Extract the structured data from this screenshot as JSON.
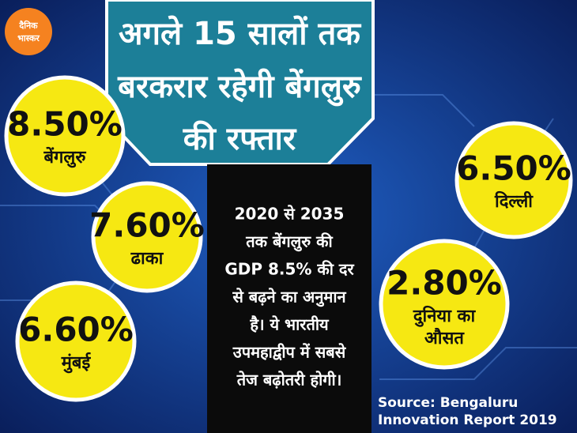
{
  "logo": {
    "line1": "दैनिक",
    "line2": "भास्कर"
  },
  "title": [
    "अगले 15 सालों तक",
    "बरकरार रहेगी बेंगलुरु",
    "की रफ्तार"
  ],
  "circles": [
    {
      "value": "8.50%",
      "label": [
        "बेंगलुरु"
      ]
    },
    {
      "value": "7.60%",
      "label": [
        "ढाका"
      ]
    },
    {
      "value": "6.60%",
      "label": [
        "मुंबई"
      ]
    },
    {
      "value": "6.50%",
      "label": [
        "दिल्ली"
      ]
    },
    {
      "value": "2.80%",
      "label": [
        "दुनिया का",
        "औसत"
      ]
    }
  ],
  "body": [
    "2020 से 2035",
    "तक बेंगलुरु की",
    "GDP 8.5% की दर",
    "से बढ़ने का अनुमान",
    "है। ये भारतीय",
    "उपमहाद्वीप में सबसे",
    "तेज बढ़ोतरी होगी।"
  ],
  "source": [
    "Source: Bengaluru",
    "Innovation Report 2019"
  ]
}
